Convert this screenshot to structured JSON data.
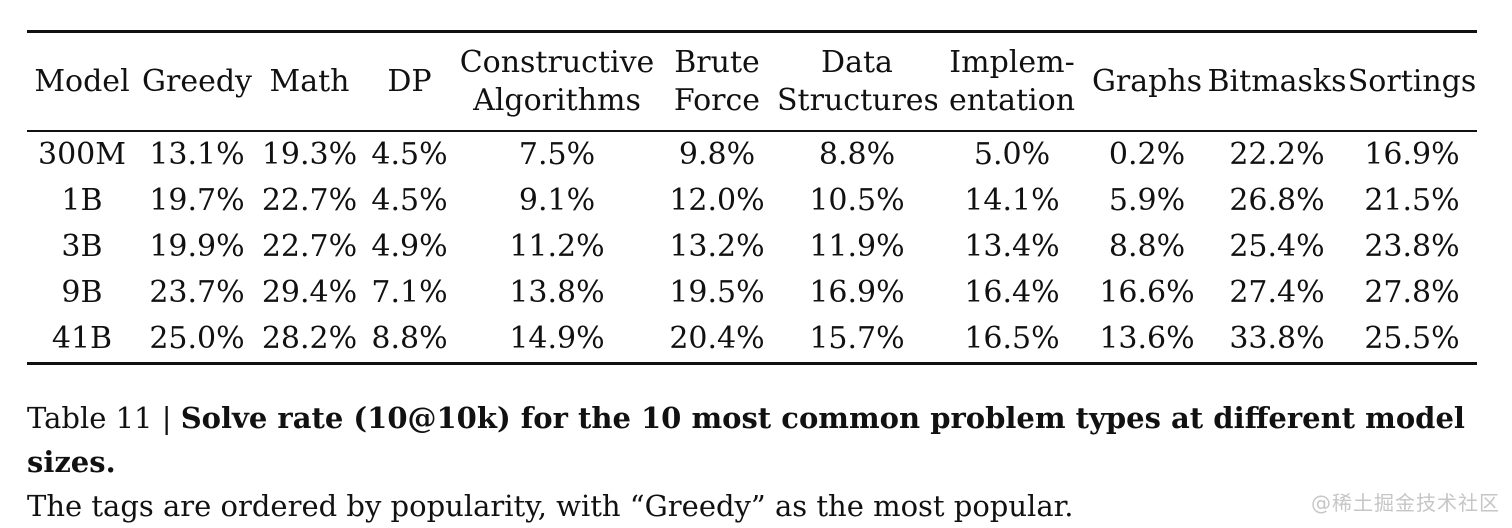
{
  "table": {
    "columns": [
      {
        "id": "model",
        "label": [
          "Model"
        ]
      },
      {
        "id": "greedy",
        "label": [
          "Greedy"
        ]
      },
      {
        "id": "math",
        "label": [
          "Math"
        ]
      },
      {
        "id": "dp",
        "label": [
          "DP"
        ]
      },
      {
        "id": "constructive-algorithms",
        "label": [
          "Constructive",
          "Algorithms"
        ]
      },
      {
        "id": "brute-force",
        "label": [
          "Brute",
          "Force"
        ]
      },
      {
        "id": "data-structures",
        "label": [
          "Data",
          "Structures"
        ]
      },
      {
        "id": "implementation",
        "label": [
          "Implem-",
          "entation"
        ]
      },
      {
        "id": "graphs",
        "label": [
          "Graphs"
        ]
      },
      {
        "id": "bitmasks",
        "label": [
          "Bitmasks"
        ]
      },
      {
        "id": "sortings",
        "label": [
          "Sortings"
        ]
      }
    ],
    "rows": [
      {
        "model": "300M",
        "values": [
          "13.1%",
          "19.3%",
          "4.5%",
          "7.5%",
          "9.8%",
          "8.8%",
          "5.0%",
          "0.2%",
          "22.2%",
          "16.9%"
        ]
      },
      {
        "model": "1B",
        "values": [
          "19.7%",
          "22.7%",
          "4.5%",
          "9.1%",
          "12.0%",
          "10.5%",
          "14.1%",
          "5.9%",
          "26.8%",
          "21.5%"
        ]
      },
      {
        "model": "3B",
        "values": [
          "19.9%",
          "22.7%",
          "4.9%",
          "11.2%",
          "13.2%",
          "11.9%",
          "13.4%",
          "8.8%",
          "25.4%",
          "23.8%"
        ]
      },
      {
        "model": "9B",
        "values": [
          "23.7%",
          "29.4%",
          "7.1%",
          "13.8%",
          "19.5%",
          "16.9%",
          "16.4%",
          "16.6%",
          "27.4%",
          "27.8%"
        ]
      },
      {
        "model": "41B",
        "values": [
          "25.0%",
          "28.2%",
          "8.8%",
          "14.9%",
          "20.4%",
          "15.7%",
          "16.5%",
          "13.6%",
          "33.8%",
          "25.5%"
        ]
      }
    ]
  },
  "caption": {
    "prefix": "Table 11 | ",
    "bold": "Solve rate (10@10k) for the 10 most common problem types at different model sizes.",
    "line2": "The tags are ordered by popularity, with “Greedy” as the most popular."
  },
  "watermark": {
    "text": "@稀土掘金技术社区"
  },
  "colors": {
    "text": "#111111",
    "rule": "#111111",
    "background": "#ffffff",
    "watermark": "#c6c6c6"
  },
  "chart_data": {
    "type": "table",
    "title": "Solve rate (10@10k) for the 10 most common problem types at different model sizes",
    "categories": [
      "Greedy",
      "Math",
      "DP",
      "Constructive Algorithms",
      "Brute Force",
      "Data Structures",
      "Implementation",
      "Graphs",
      "Bitmasks",
      "Sortings"
    ],
    "series": [
      {
        "name": "300M",
        "values": [
          13.1,
          19.3,
          4.5,
          7.5,
          9.8,
          8.8,
          5.0,
          0.2,
          22.2,
          16.9
        ]
      },
      {
        "name": "1B",
        "values": [
          19.7,
          22.7,
          4.5,
          9.1,
          12.0,
          10.5,
          14.1,
          5.9,
          26.8,
          21.5
        ]
      },
      {
        "name": "3B",
        "values": [
          19.9,
          22.7,
          4.9,
          11.2,
          13.2,
          11.9,
          13.4,
          8.8,
          25.4,
          23.8
        ]
      },
      {
        "name": "9B",
        "values": [
          23.7,
          29.4,
          7.1,
          13.8,
          19.5,
          16.9,
          16.4,
          16.6,
          27.4,
          27.8
        ]
      },
      {
        "name": "41B",
        "values": [
          25.0,
          28.2,
          8.8,
          14.9,
          20.4,
          15.7,
          16.5,
          13.6,
          33.8,
          25.5
        ]
      }
    ],
    "unit": "%"
  }
}
